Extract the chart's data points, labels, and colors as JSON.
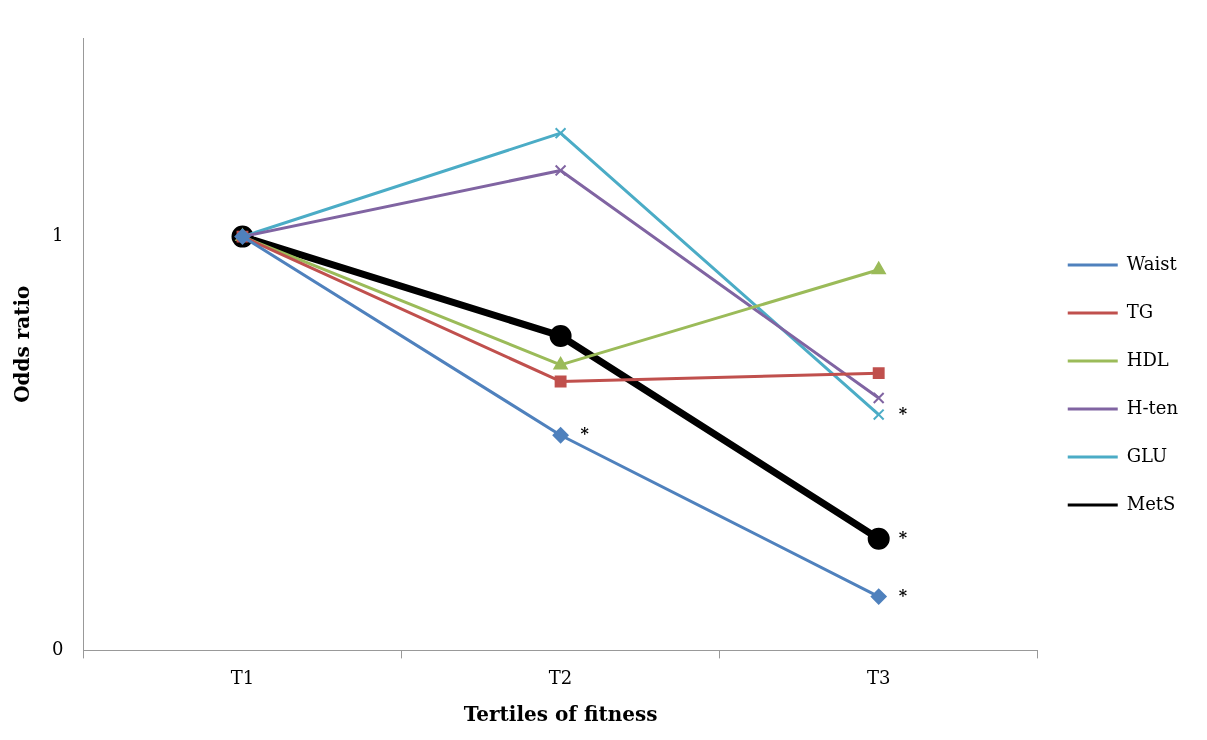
{
  "chart_data": {
    "type": "line",
    "xlabel": "Tertiles of fitness",
    "ylabel": "Odds ratio",
    "categories": [
      "T1",
      "T2",
      "T3"
    ],
    "series": [
      {
        "name": "Waist",
        "color": "#4f81bd",
        "marker": "diamond",
        "values": [
          1,
          0.52,
          0.13
        ]
      },
      {
        "name": "TG",
        "color": "#c0504d",
        "marker": "square",
        "values": [
          1,
          0.65,
          0.67
        ]
      },
      {
        "name": "HDL",
        "color": "#9bbb59",
        "marker": "triangle",
        "values": [
          1,
          0.69,
          0.92
        ]
      },
      {
        "name": "H-ten",
        "color": "#8064a2",
        "marker": "cross",
        "values": [
          1,
          1.16,
          0.61
        ]
      },
      {
        "name": "GLU",
        "color": "#4bacc6",
        "marker": "cross",
        "values": [
          1,
          1.25,
          0.57
        ]
      },
      {
        "name": "MetS",
        "color": "#000000",
        "marker": "circle",
        "values": [
          1,
          0.76,
          0.27
        ]
      }
    ],
    "ylim": [
      0,
      1.48
    ],
    "yticks": [
      0,
      1
    ],
    "grid": false,
    "legend": "right",
    "annotations": [
      {
        "text": "*",
        "x": "T2",
        "y": 0.52
      },
      {
        "text": "*",
        "x": "T3",
        "y": 0.57
      },
      {
        "text": "*",
        "x": "T3",
        "y": 0.27
      },
      {
        "text": "*",
        "x": "T3",
        "y": 0.13
      }
    ]
  }
}
